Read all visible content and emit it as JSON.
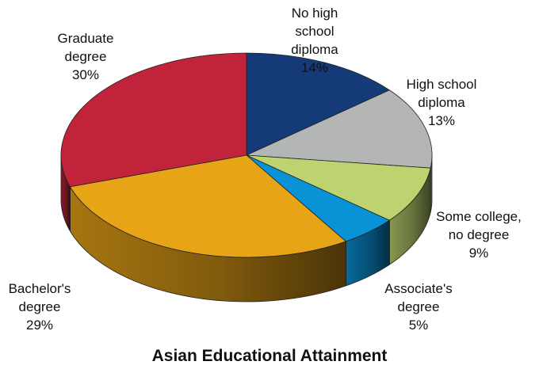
{
  "chart_data": {
    "type": "pie",
    "title": "Asian Educational Attainment",
    "slices": [
      {
        "name": "No high school diploma",
        "label_lines": [
          "No high",
          "school",
          "diploma"
        ],
        "value": 14,
        "value_label": "14%",
        "color": "#143a78"
      },
      {
        "name": "High school diploma",
        "label_lines": [
          "High school",
          "diploma"
        ],
        "value": 13,
        "value_label": "13%",
        "color": "#b3b6b5"
      },
      {
        "name": "Some college, no degree",
        "label_lines": [
          "Some college,",
          "no degree"
        ],
        "value": 9,
        "value_label": "9%",
        "color": "#bdd36f"
      },
      {
        "name": "Associate's degree",
        "label_lines": [
          "Associate's",
          "degree"
        ],
        "value": 5,
        "value_label": "5%",
        "color": "#0a92d6"
      },
      {
        "name": "Bachelor's degree",
        "label_lines": [
          "Bachelor's",
          "degree"
        ],
        "value": 29,
        "value_label": "29%",
        "color": "#e8a417"
      },
      {
        "name": "Graduate degree",
        "label_lines": [
          "Graduate",
          "degree"
        ],
        "value": 30,
        "value_label": "30%",
        "color": "#c1243a"
      }
    ],
    "start_angle_deg": 90,
    "direction": "clockwise",
    "style": "3d",
    "legend": "none",
    "labels_position": "outside"
  }
}
